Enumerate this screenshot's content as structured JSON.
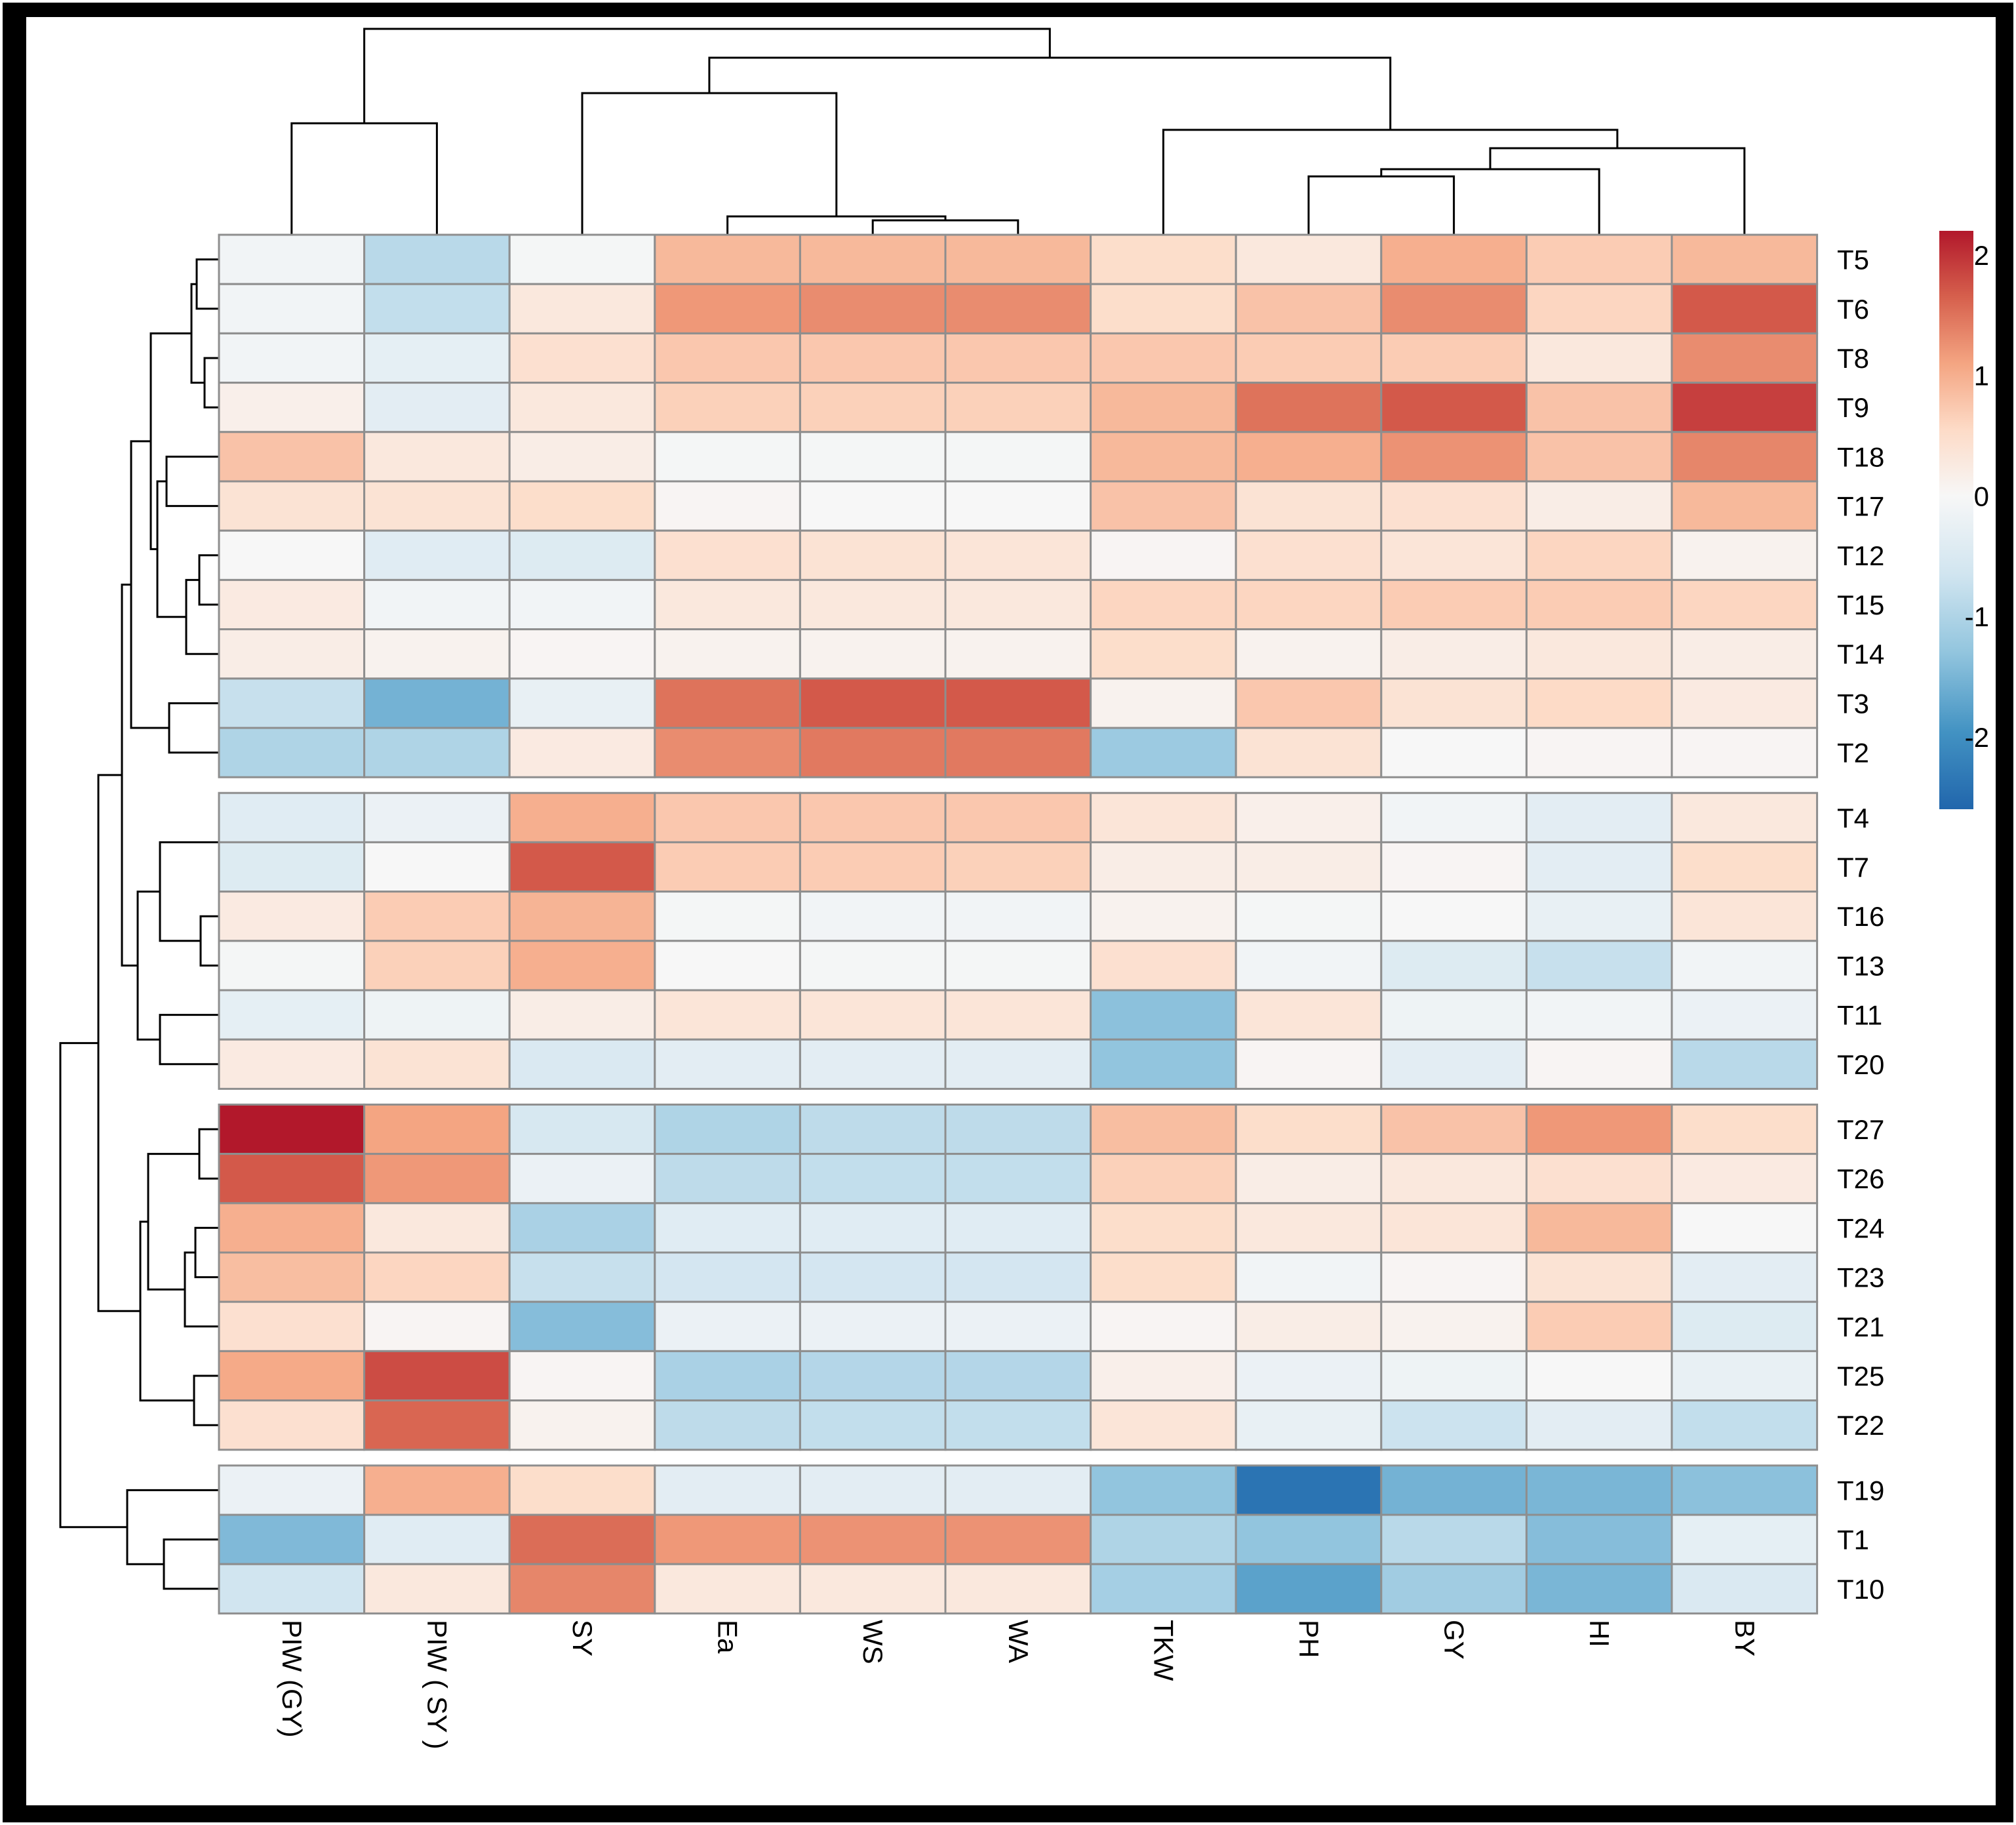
{
  "chart_data": {
    "type": "heatmap",
    "title": "",
    "columns": [
      "PIW (GY)",
      "PIW ( SY )",
      "SY",
      "Ea",
      "WS",
      "WA",
      "TKW",
      "PH",
      "GY",
      "HI",
      "BY"
    ],
    "row_groups": [
      {
        "rows": [
          {
            "label": "T5",
            "values": [
              -0.1,
              -0.9,
              -0.05,
              0.9,
              0.9,
              0.9,
              0.5,
              0.3,
              1.0,
              0.7,
              0.9
            ]
          },
          {
            "label": "T6",
            "values": [
              -0.1,
              -0.8,
              0.3,
              1.2,
              1.3,
              1.3,
              0.5,
              0.8,
              1.3,
              0.6,
              1.7
            ]
          },
          {
            "label": "T8",
            "values": [
              -0.1,
              -0.3,
              0.45,
              0.75,
              0.75,
              0.75,
              0.75,
              0.7,
              0.7,
              0.3,
              1.3
            ]
          },
          {
            "label": "T9",
            "values": [
              0.15,
              -0.35,
              0.3,
              0.65,
              0.65,
              0.65,
              0.9,
              1.5,
              1.7,
              0.8,
              1.9
            ]
          },
          {
            "label": "T18",
            "values": [
              0.8,
              0.3,
              0.2,
              -0.05,
              -0.05,
              -0.05,
              0.9,
              1.0,
              1.25,
              0.8,
              1.35
            ]
          },
          {
            "label": "T17",
            "values": [
              0.4,
              0.4,
              0.5,
              0.05,
              0.0,
              0.0,
              0.8,
              0.4,
              0.45,
              0.2,
              0.9
            ]
          },
          {
            "label": "T12",
            "values": [
              0.0,
              -0.4,
              -0.45,
              0.45,
              0.4,
              0.35,
              0.05,
              0.45,
              0.35,
              0.6,
              0.1
            ]
          },
          {
            "label": "T15",
            "values": [
              0.25,
              -0.1,
              -0.1,
              0.3,
              0.3,
              0.3,
              0.6,
              0.6,
              0.7,
              0.7,
              0.6
            ]
          },
          {
            "label": "T14",
            "values": [
              0.2,
              0.1,
              0.05,
              0.1,
              0.1,
              0.1,
              0.5,
              0.1,
              0.2,
              0.3,
              0.2
            ]
          },
          {
            "label": "T3",
            "values": [
              -0.75,
              -1.55,
              -0.25,
              1.5,
              1.7,
              1.7,
              0.1,
              0.75,
              0.4,
              0.55,
              0.25
            ]
          },
          {
            "label": "T2",
            "values": [
              -1.0,
              -1.0,
              0.25,
              1.3,
              1.45,
              1.45,
              -1.2,
              0.4,
              0.0,
              0.05,
              0.05
            ]
          }
        ]
      },
      {
        "rows": [
          {
            "label": "T4",
            "values": [
              -0.4,
              -0.2,
              1.0,
              0.75,
              0.75,
              0.75,
              0.35,
              0.15,
              -0.1,
              -0.35,
              0.3
            ]
          },
          {
            "label": "T7",
            "values": [
              -0.45,
              0.0,
              1.7,
              0.7,
              0.7,
              0.65,
              0.2,
              0.2,
              0.05,
              -0.35,
              0.5
            ]
          },
          {
            "label": "T16",
            "values": [
              0.25,
              0.7,
              0.95,
              -0.05,
              -0.1,
              -0.1,
              0.1,
              -0.05,
              0.0,
              -0.25,
              0.35
            ]
          },
          {
            "label": "T13",
            "values": [
              -0.05,
              0.65,
              1.0,
              0.0,
              -0.05,
              -0.05,
              0.45,
              -0.1,
              -0.45,
              -0.75,
              -0.1
            ]
          },
          {
            "label": "T11",
            "values": [
              -0.3,
              -0.15,
              0.2,
              0.35,
              0.35,
              0.35,
              -1.35,
              0.35,
              -0.15,
              -0.1,
              -0.2
            ]
          },
          {
            "label": "T20",
            "values": [
              0.25,
              0.4,
              -0.5,
              -0.35,
              -0.35,
              -0.35,
              -1.3,
              0.05,
              -0.35,
              0.05,
              -0.9
            ]
          }
        ]
      },
      {
        "rows": [
          {
            "label": "T27",
            "values": [
              2.2,
              1.1,
              -0.55,
              -1.0,
              -0.85,
              -0.85,
              0.85,
              0.5,
              0.8,
              1.2,
              0.5
            ]
          },
          {
            "label": "T26",
            "values": [
              1.7,
              1.2,
              -0.2,
              -0.85,
              -0.8,
              -0.8,
              0.65,
              0.2,
              0.3,
              0.45,
              0.25
            ]
          },
          {
            "label": "T24",
            "values": [
              1.0,
              0.3,
              -1.05,
              -0.4,
              -0.4,
              -0.4,
              0.5,
              0.3,
              0.35,
              0.9,
              0.0
            ]
          },
          {
            "label": "T23",
            "values": [
              0.85,
              0.6,
              -0.75,
              -0.6,
              -0.6,
              -0.6,
              0.5,
              -0.1,
              0.05,
              0.4,
              -0.35
            ]
          },
          {
            "label": "T21",
            "values": [
              0.45,
              0.05,
              -1.4,
              -0.2,
              -0.2,
              -0.2,
              0.05,
              0.2,
              0.1,
              0.7,
              -0.45
            ]
          },
          {
            "label": "T25",
            "values": [
              1.05,
              1.8,
              0.05,
              -1.05,
              -0.95,
              -0.95,
              0.15,
              -0.2,
              -0.15,
              0.0,
              -0.25
            ]
          },
          {
            "label": "T22",
            "values": [
              0.45,
              1.6,
              0.1,
              -0.85,
              -0.8,
              -0.8,
              0.35,
              -0.25,
              -0.7,
              -0.35,
              -0.8
            ]
          }
        ]
      },
      {
        "rows": [
          {
            "label": "T19",
            "values": [
              -0.2,
              1.0,
              0.5,
              -0.35,
              -0.35,
              -0.35,
              -1.3,
              -2.4,
              -1.55,
              -1.5,
              -1.35
            ]
          },
          {
            "label": "T1",
            "values": [
              -1.45,
              -0.4,
              1.55,
              1.2,
              1.25,
              1.25,
              -1.0,
              -1.3,
              -0.9,
              -1.4,
              -0.3
            ]
          },
          {
            "label": "T10",
            "values": [
              -0.65,
              0.3,
              1.35,
              0.3,
              0.3,
              0.3,
              -1.1,
              -1.75,
              -1.15,
              -1.5,
              -0.5
            ]
          }
        ]
      }
    ],
    "legend": {
      "placement": "top-right",
      "range": [
        -2.6,
        2.2
      ],
      "ticks": [
        2,
        1,
        0,
        -1,
        -2
      ],
      "tick_labels": [
        "2",
        "1",
        "0",
        "-1",
        "-2"
      ],
      "colors": [
        "#2166ac",
        "#4393c3",
        "#92c5de",
        "#d1e5f0",
        "#f7f7f7",
        "#fddbc7",
        "#f4a582",
        "#d6604d",
        "#b2182b"
      ]
    },
    "dendrograms": [
      "columns",
      "rows"
    ]
  }
}
